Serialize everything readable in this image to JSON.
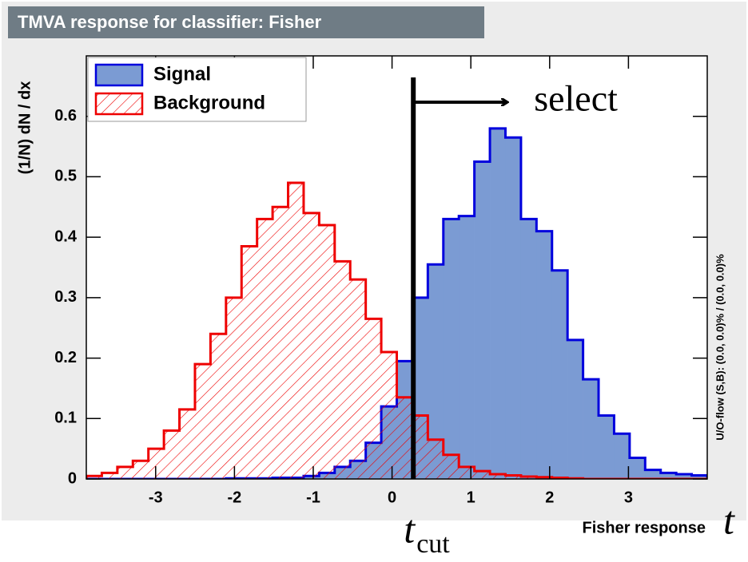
{
  "chart_data": {
    "type": "histogram",
    "title": "TMVA response for classifier: Fisher",
    "xlabel": "Fisher response",
    "ylabel": "(1/N) dN / dx",
    "side_note": "U/O-flow (S,B): (0.0, 0.0)% / (0.0, 0.0)%",
    "legend": "top-left",
    "xlim": [
      -3.88,
      4.0
    ],
    "ylim": [
      0,
      0.7
    ],
    "xticks": [
      -3,
      -2,
      -1,
      0,
      1,
      2,
      3
    ],
    "yticks": [
      0,
      0.1,
      0.2,
      0.3,
      0.4,
      0.5,
      0.6
    ],
    "bins": [
      -3.88,
      -3.683,
      -3.486,
      -3.289,
      -3.092,
      -2.895,
      -2.698,
      -2.501,
      -2.304,
      -2.107,
      -1.91,
      -1.713,
      -1.516,
      -1.319,
      -1.122,
      -0.925,
      -0.728,
      -0.531,
      -0.334,
      -0.137,
      0.06,
      0.257,
      0.454,
      0.651,
      0.848,
      1.045,
      1.242,
      1.439,
      1.636,
      1.833,
      2.03,
      2.227,
      2.424,
      2.621,
      2.818,
      3.015,
      3.212,
      3.409,
      3.606,
      3.803,
      4.0
    ],
    "series": [
      {
        "name": "Signal",
        "color": "#0000dd",
        "fill": "#7b9bd3",
        "fill_style": "solid",
        "values": [
          0,
          0,
          0,
          0,
          0,
          0,
          0,
          0,
          0,
          0.001,
          0.001,
          0.001,
          0.002,
          0.002,
          0.005,
          0.01,
          0.02,
          0.03,
          0.06,
          0.12,
          0.195,
          0.3,
          0.355,
          0.43,
          0.435,
          0.525,
          0.58,
          0.565,
          0.43,
          0.41,
          0.345,
          0.23,
          0.165,
          0.105,
          0.075,
          0.035,
          0.015,
          0.01,
          0.008,
          0.006
        ]
      },
      {
        "name": "Background",
        "color": "#ee0000",
        "fill": "#ee0000",
        "fill_style": "hatch",
        "values": [
          0.005,
          0.01,
          0.02,
          0.03,
          0.05,
          0.08,
          0.115,
          0.19,
          0.24,
          0.3,
          0.385,
          0.43,
          0.45,
          0.49,
          0.44,
          0.42,
          0.36,
          0.33,
          0.265,
          0.21,
          0.135,
          0.105,
          0.065,
          0.04,
          0.02,
          0.013,
          0.008,
          0.006,
          0.004,
          0.003,
          0.002,
          0.001,
          0,
          0,
          0,
          0,
          0,
          0,
          0,
          0
        ]
      }
    ],
    "cut": {
      "value": 0.27,
      "label": "t",
      "label_sub": "cut",
      "select_text": "select"
    },
    "axis_symbol": "t"
  }
}
